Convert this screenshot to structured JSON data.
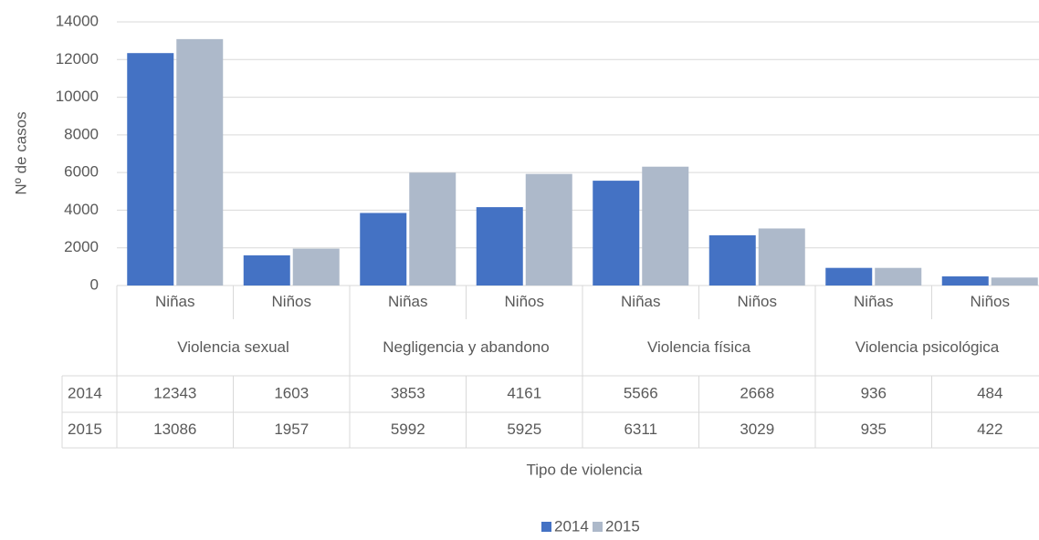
{
  "chart_data": {
    "type": "bar",
    "x_label": "Tipo de violencia",
    "y_label": "Nº de casos",
    "categories": [
      "Niñas",
      "Niños",
      "Niñas",
      "Niños",
      "Niñas",
      "Niños",
      "Niñas",
      "Niños"
    ],
    "groups": [
      "Violencia sexual",
      "Negligencia y abandono",
      "Violencia física",
      "Violencia psicológica"
    ],
    "series": [
      {
        "name": "2014",
        "color": "#4472c4",
        "values": [
          12343,
          1603,
          3853,
          4161,
          5566,
          2668,
          936,
          484
        ]
      },
      {
        "name": "2015",
        "color": "#adb9ca",
        "values": [
          13086,
          1957,
          5992,
          5925,
          6311,
          3029,
          935,
          422
        ]
      }
    ],
    "ylim": [
      0,
      14000
    ],
    "yticks": [
      0,
      2000,
      4000,
      6000,
      8000,
      10000,
      12000,
      14000
    ],
    "grid": true,
    "legend": "bottom"
  }
}
